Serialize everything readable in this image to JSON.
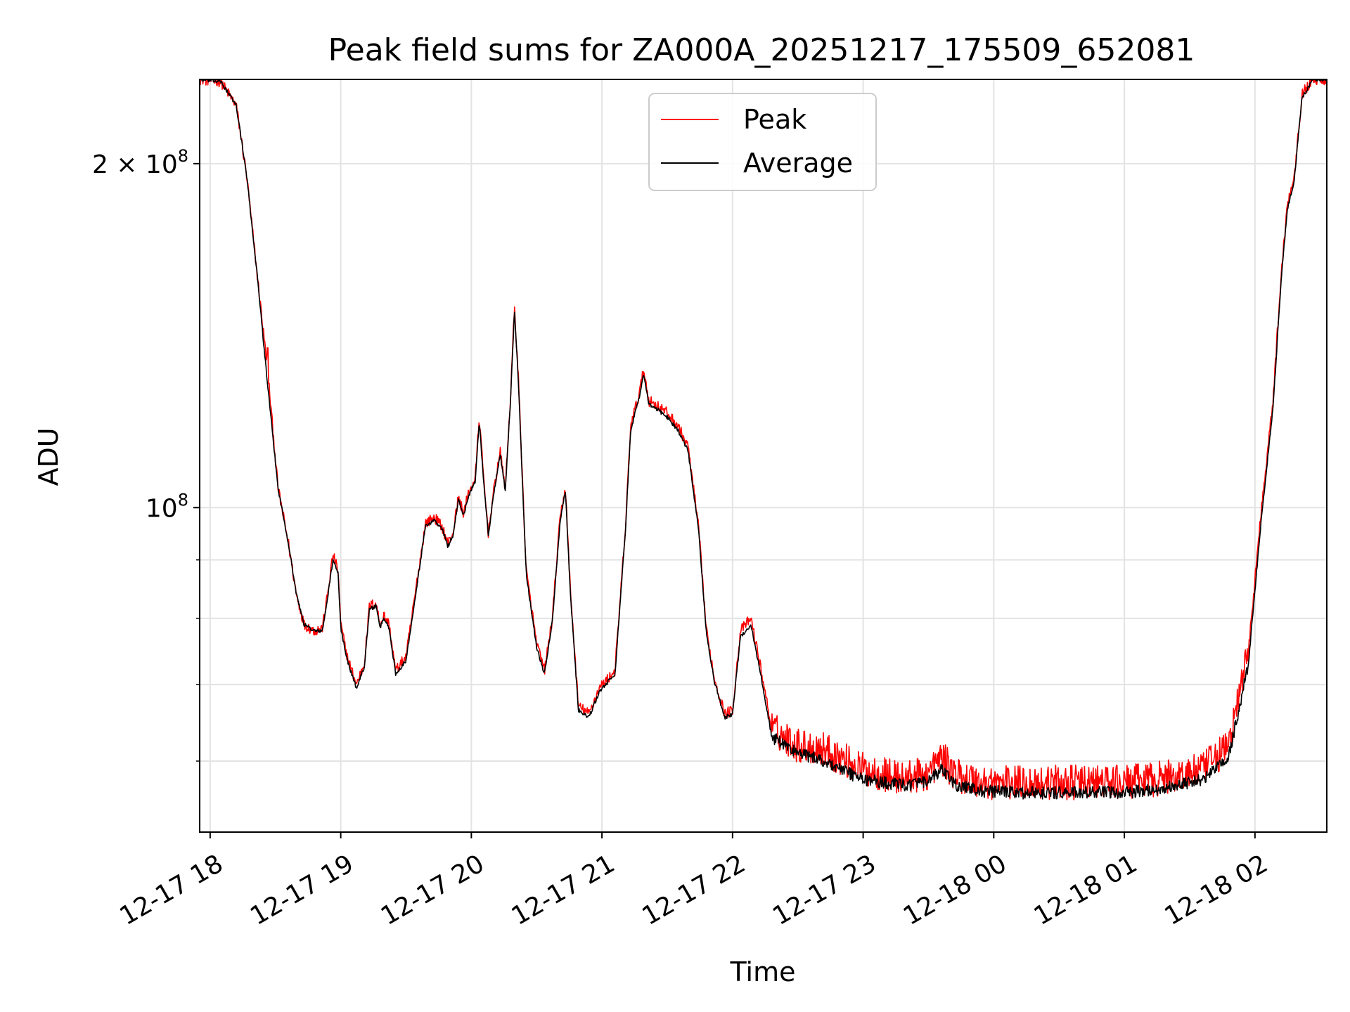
{
  "chart_data": {
    "type": "line",
    "title": "Peak field sums for ZA000A_20251217_175509_652081",
    "xlabel": "Time",
    "ylabel": "ADU",
    "yscale": "log",
    "ylim": [
      52000000,
      237000000
    ],
    "xlim_hours": [
      -0.08,
      8.55
    ],
    "grid": true,
    "legend_position": "top-center",
    "x_ticks": [
      {
        "hour": 0,
        "label": "12-17 18"
      },
      {
        "hour": 1,
        "label": "12-17 19"
      },
      {
        "hour": 2,
        "label": "12-17 20"
      },
      {
        "hour": 3,
        "label": "12-17 21"
      },
      {
        "hour": 4,
        "label": "12-17 22"
      },
      {
        "hour": 5,
        "label": "12-17 23"
      },
      {
        "hour": 6,
        "label": "12-18 00"
      },
      {
        "hour": 7,
        "label": "12-18 01"
      },
      {
        "hour": 8,
        "label": "12-18 02"
      }
    ],
    "y_major_ticks": [
      {
        "value": 100000000,
        "base": "10",
        "exp": "8",
        "prefix": ""
      },
      {
        "value": 200000000,
        "base": "10",
        "exp": "8",
        "prefix": "2 × "
      }
    ],
    "y_minor_ticks": [
      60000000,
      70000000,
      80000000,
      90000000,
      300000000
    ],
    "series": [
      {
        "name": "Peak",
        "color": "#ff0000",
        "noise": 0.022,
        "spike": {
          "hour": 0.44,
          "value": 138000000
        },
        "points": [
          [
            -0.08,
            237000000
          ],
          [
            0.08,
            236000000
          ],
          [
            0.2,
            225000000
          ],
          [
            0.28,
            195000000
          ],
          [
            0.36,
            160000000
          ],
          [
            0.44,
            132000000
          ],
          [
            0.52,
            104000000
          ],
          [
            0.6,
            93000000
          ],
          [
            0.66,
            84000000
          ],
          [
            0.72,
            79000000
          ],
          [
            0.8,
            78000000
          ],
          [
            0.86,
            78500000
          ],
          [
            0.9,
            84000000
          ],
          [
            0.94,
            91000000
          ],
          [
            0.98,
            88000000
          ],
          [
            1.0,
            79000000
          ],
          [
            1.05,
            74000000
          ],
          [
            1.12,
            70000000
          ],
          [
            1.18,
            73000000
          ],
          [
            1.22,
            82000000
          ],
          [
            1.27,
            82500000
          ],
          [
            1.3,
            79000000
          ],
          [
            1.33,
            80500000
          ],
          [
            1.37,
            79000000
          ],
          [
            1.42,
            72000000
          ],
          [
            1.5,
            74000000
          ],
          [
            1.57,
            84000000
          ],
          [
            1.65,
            97000000
          ],
          [
            1.72,
            98000000
          ],
          [
            1.78,
            96000000
          ],
          [
            1.82,
            93000000
          ],
          [
            1.86,
            95000000
          ],
          [
            1.9,
            102000000
          ],
          [
            1.94,
            99000000
          ],
          [
            1.98,
            103000000
          ],
          [
            2.03,
            106000000
          ],
          [
            2.06,
            120000000
          ],
          [
            2.1,
            104000000
          ],
          [
            2.13,
            95000000
          ],
          [
            2.17,
            103000000
          ],
          [
            2.22,
            112000000
          ],
          [
            2.26,
            104000000
          ],
          [
            2.3,
            125000000
          ],
          [
            2.33,
            150000000
          ],
          [
            2.36,
            130000000
          ],
          [
            2.42,
            88000000
          ],
          [
            2.5,
            76000000
          ],
          [
            2.56,
            72000000
          ],
          [
            2.62,
            80000000
          ],
          [
            2.68,
            98000000
          ],
          [
            2.72,
            104000000
          ],
          [
            2.76,
            84000000
          ],
          [
            2.82,
            67000000
          ],
          [
            2.9,
            66000000
          ],
          [
            2.98,
            69500000
          ],
          [
            3.1,
            72000000
          ],
          [
            3.18,
            96000000
          ],
          [
            3.22,
            118000000
          ],
          [
            3.28,
            125000000
          ],
          [
            3.32,
            132000000
          ],
          [
            3.36,
            124000000
          ],
          [
            3.42,
            123000000
          ],
          [
            3.5,
            121000000
          ],
          [
            3.58,
            118000000
          ],
          [
            3.66,
            113000000
          ],
          [
            3.74,
            96000000
          ],
          [
            3.8,
            78000000
          ],
          [
            3.86,
            71000000
          ],
          [
            3.94,
            66000000
          ],
          [
            4.0,
            66500000
          ],
          [
            4.06,
            78000000
          ],
          [
            4.14,
            80000000
          ],
          [
            4.22,
            72000000
          ],
          [
            4.3,
            64000000
          ],
          [
            4.5,
            62000000
          ],
          [
            4.7,
            61500000
          ],
          [
            5.0,
            59000000
          ],
          [
            5.3,
            58000000
          ],
          [
            5.5,
            58500000
          ],
          [
            5.6,
            60500000
          ],
          [
            5.7,
            58500000
          ],
          [
            5.9,
            57500000
          ],
          [
            6.2,
            57500000
          ],
          [
            6.6,
            57500000
          ],
          [
            7.0,
            57500000
          ],
          [
            7.3,
            58000000
          ],
          [
            7.6,
            59000000
          ],
          [
            7.8,
            62000000
          ],
          [
            7.95,
            75000000
          ],
          [
            8.05,
            100000000
          ],
          [
            8.14,
            125000000
          ],
          [
            8.2,
            160000000
          ],
          [
            8.25,
            185000000
          ],
          [
            8.3,
            195000000
          ],
          [
            8.36,
            230000000
          ],
          [
            8.44,
            237000000
          ],
          [
            8.55,
            237000000
          ]
        ]
      },
      {
        "name": "Average",
        "color": "#000000",
        "noise": 0.008,
        "spike": null,
        "points": [
          [
            -0.08,
            237000000
          ],
          [
            0.08,
            236000000
          ],
          [
            0.2,
            225000000
          ],
          [
            0.28,
            195000000
          ],
          [
            0.36,
            160000000
          ],
          [
            0.44,
            128000000
          ],
          [
            0.52,
            104000000
          ],
          [
            0.6,
            93000000
          ],
          [
            0.66,
            84000000
          ],
          [
            0.72,
            79000000
          ],
          [
            0.8,
            78000000
          ],
          [
            0.86,
            78000000
          ],
          [
            0.9,
            83500000
          ],
          [
            0.94,
            90000000
          ],
          [
            0.98,
            87500000
          ],
          [
            1.0,
            78500000
          ],
          [
            1.05,
            73500000
          ],
          [
            1.12,
            69500000
          ],
          [
            1.18,
            72500000
          ],
          [
            1.22,
            81500000
          ],
          [
            1.27,
            82000000
          ],
          [
            1.3,
            78500000
          ],
          [
            1.33,
            80000000
          ],
          [
            1.37,
            78500000
          ],
          [
            1.42,
            71500000
          ],
          [
            1.5,
            73500000
          ],
          [
            1.57,
            83500000
          ],
          [
            1.65,
            96500000
          ],
          [
            1.72,
            97500000
          ],
          [
            1.78,
            95500000
          ],
          [
            1.82,
            92500000
          ],
          [
            1.86,
            94500000
          ],
          [
            1.9,
            101500000
          ],
          [
            1.94,
            98500000
          ],
          [
            1.98,
            102500000
          ],
          [
            2.03,
            105500000
          ],
          [
            2.06,
            119000000
          ],
          [
            2.1,
            103500000
          ],
          [
            2.13,
            94500000
          ],
          [
            2.17,
            102500000
          ],
          [
            2.22,
            111500000
          ],
          [
            2.26,
            103500000
          ],
          [
            2.3,
            124000000
          ],
          [
            2.33,
            149000000
          ],
          [
            2.36,
            129000000
          ],
          [
            2.42,
            87500000
          ],
          [
            2.5,
            75500000
          ],
          [
            2.56,
            71500000
          ],
          [
            2.62,
            79500000
          ],
          [
            2.68,
            97500000
          ],
          [
            2.72,
            103500000
          ],
          [
            2.76,
            83500000
          ],
          [
            2.82,
            66500000
          ],
          [
            2.9,
            65500000
          ],
          [
            2.98,
            69000000
          ],
          [
            3.1,
            71500000
          ],
          [
            3.18,
            95500000
          ],
          [
            3.22,
            117000000
          ],
          [
            3.28,
            124000000
          ],
          [
            3.32,
            131000000
          ],
          [
            3.36,
            123000000
          ],
          [
            3.42,
            122000000
          ],
          [
            3.5,
            120000000
          ],
          [
            3.58,
            117000000
          ],
          [
            3.66,
            112000000
          ],
          [
            3.74,
            95500000
          ],
          [
            3.8,
            77500000
          ],
          [
            3.86,
            70500000
          ],
          [
            3.94,
            65500000
          ],
          [
            4.0,
            66000000
          ],
          [
            4.06,
            77000000
          ],
          [
            4.14,
            79000000
          ],
          [
            4.22,
            71000000
          ],
          [
            4.3,
            63000000
          ],
          [
            4.5,
            61000000
          ],
          [
            4.7,
            60000000
          ],
          [
            5.0,
            57800000
          ],
          [
            5.3,
            57200000
          ],
          [
            5.5,
            57500000
          ],
          [
            5.6,
            59000000
          ],
          [
            5.7,
            57200000
          ],
          [
            5.9,
            56500000
          ],
          [
            6.2,
            56300000
          ],
          [
            6.6,
            56300000
          ],
          [
            7.0,
            56300000
          ],
          [
            7.3,
            56800000
          ],
          [
            7.6,
            57800000
          ],
          [
            7.8,
            60500000
          ],
          [
            7.95,
            73000000
          ],
          [
            8.05,
            98000000
          ],
          [
            8.14,
            123000000
          ],
          [
            8.2,
            158000000
          ],
          [
            8.25,
            183000000
          ],
          [
            8.3,
            193000000
          ],
          [
            8.36,
            228000000
          ],
          [
            8.44,
            237000000
          ],
          [
            8.55,
            237000000
          ]
        ]
      }
    ]
  }
}
